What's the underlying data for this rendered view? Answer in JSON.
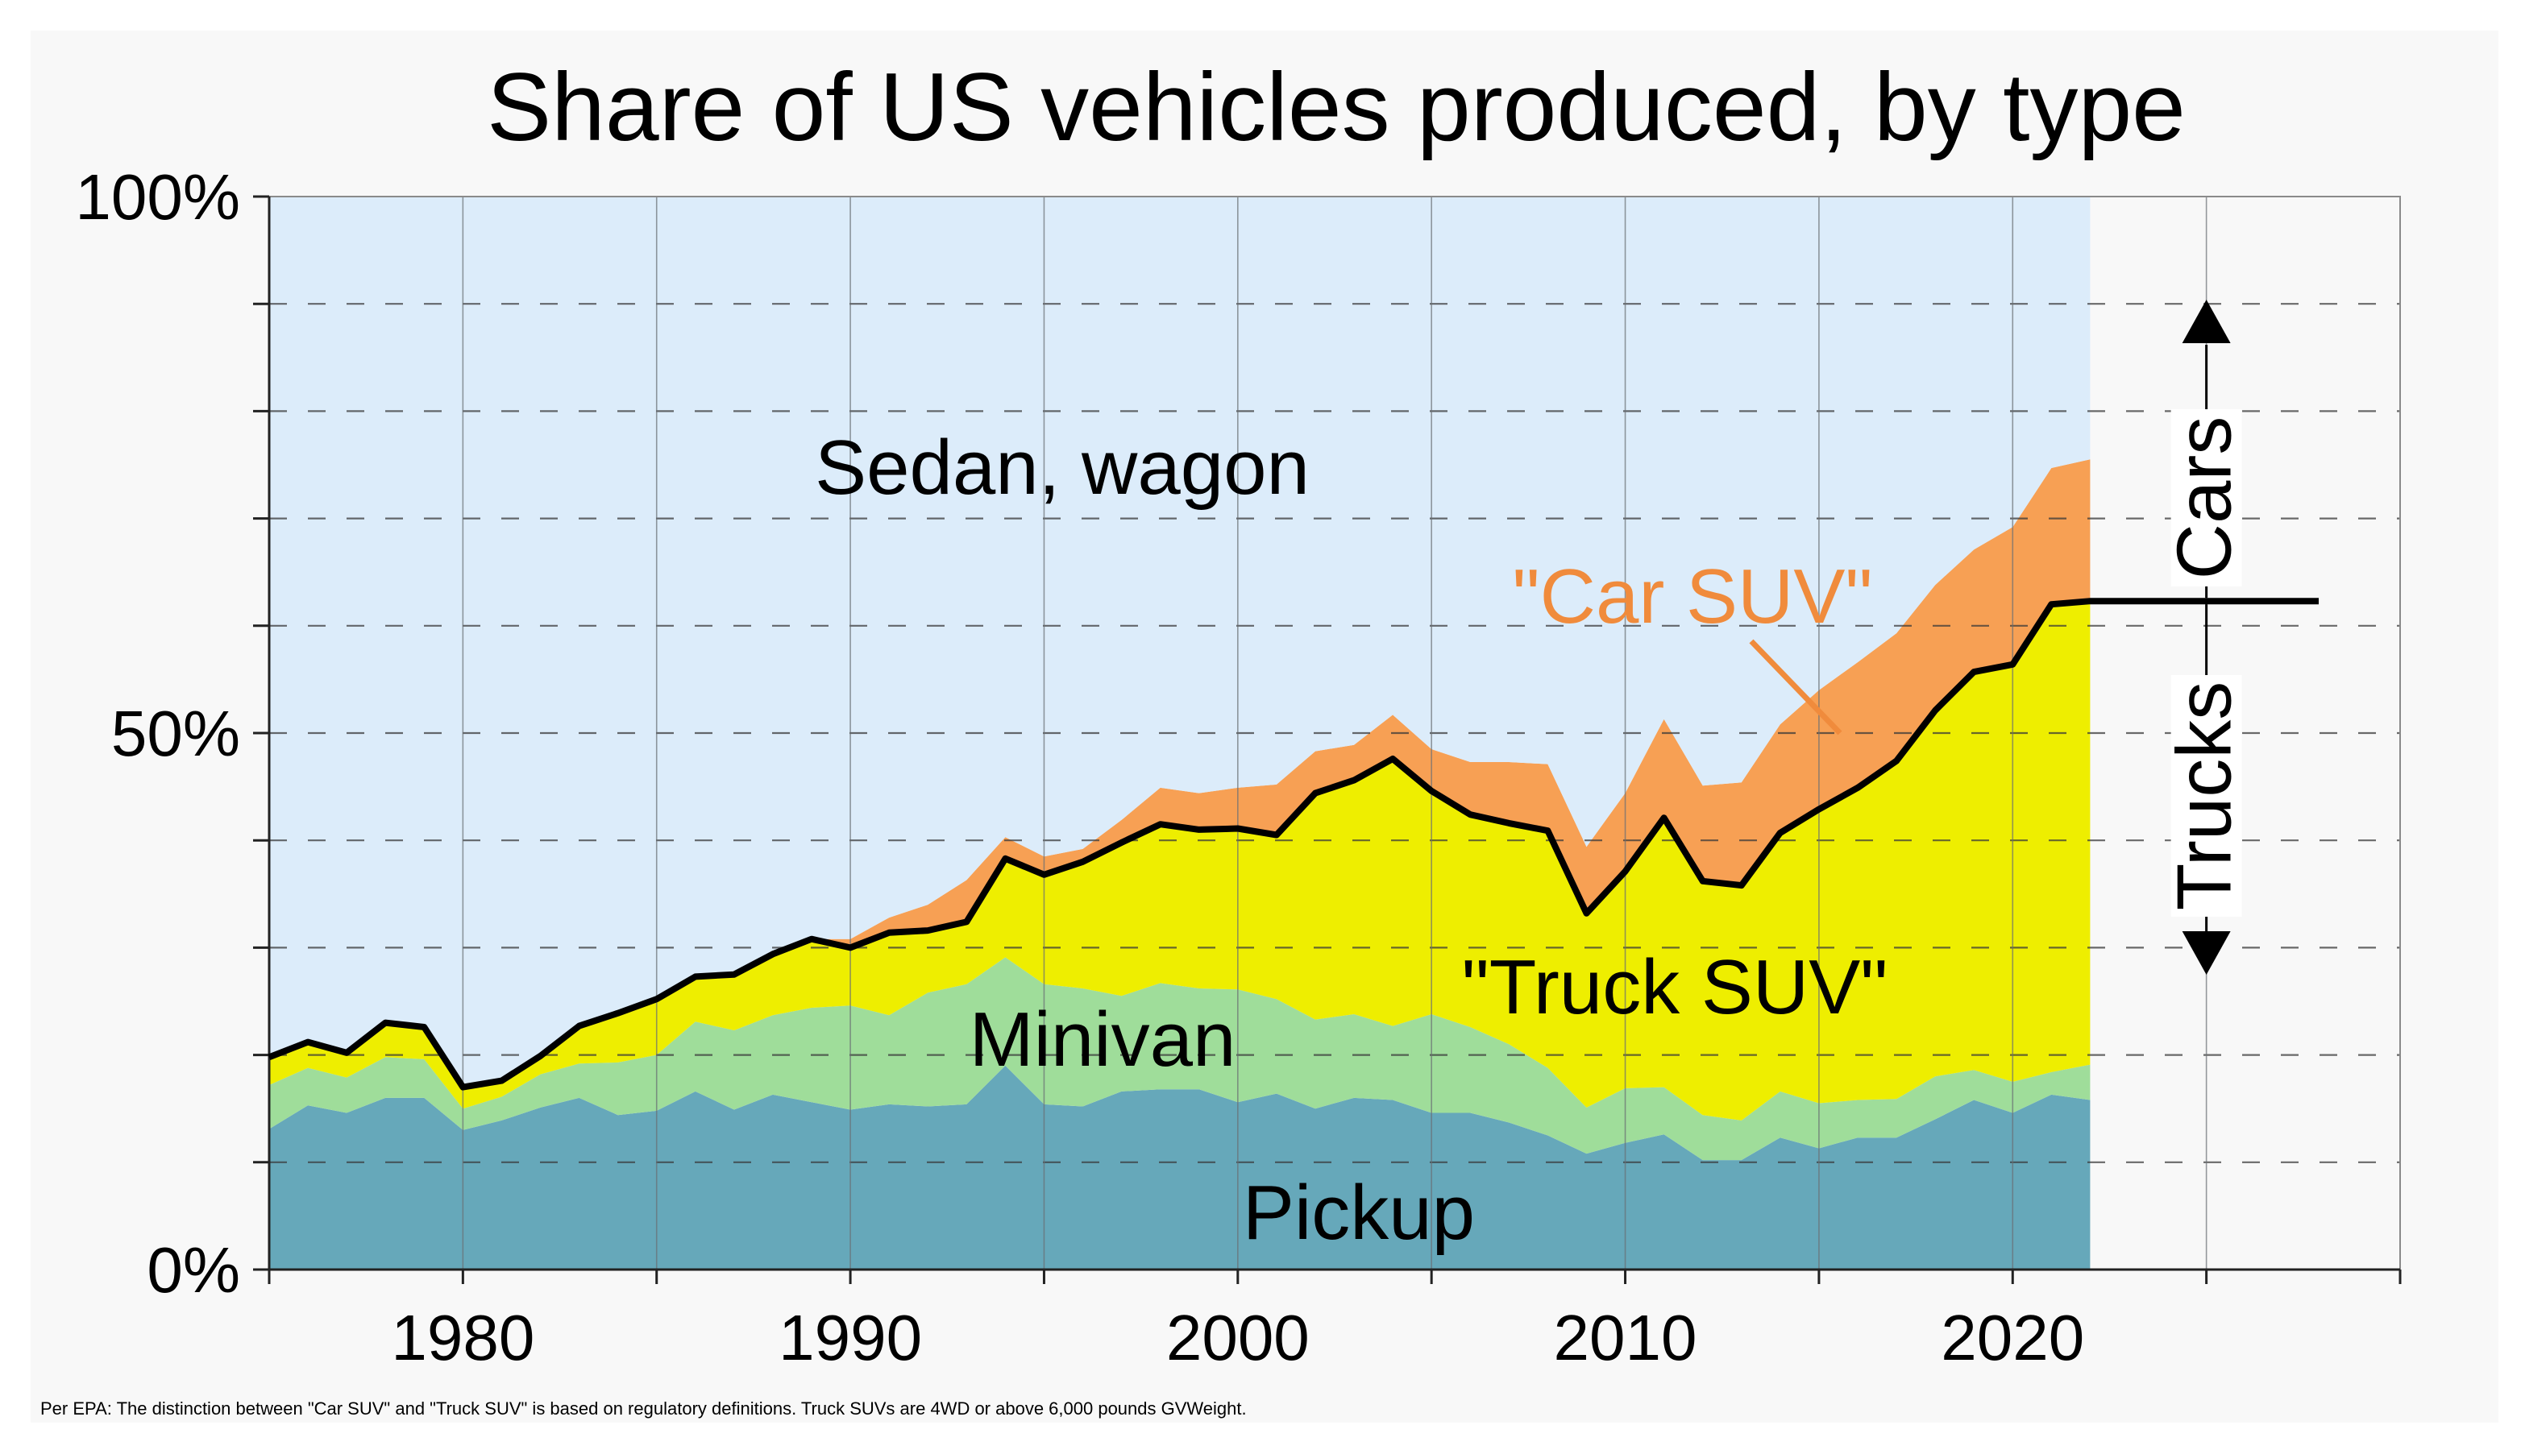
{
  "chart_data": {
    "type": "area",
    "title": "Share of US vehicles produced, by type",
    "xlabel": "",
    "ylabel": "",
    "xlim": [
      1975,
      2030
    ],
    "ylim": [
      0,
      100
    ],
    "x_ticks": [
      1980,
      1990,
      2000,
      2010,
      2020
    ],
    "y_tick_labels": [
      "0%",
      "50%",
      "100%"
    ],
    "stacking": "cumulative",
    "x": [
      1975,
      1976,
      1977,
      1978,
      1979,
      1980,
      1981,
      1982,
      1983,
      1984,
      1985,
      1986,
      1987,
      1988,
      1989,
      1990,
      1991,
      1992,
      1993,
      1994,
      1995,
      1996,
      1997,
      1998,
      1999,
      2000,
      2001,
      2002,
      2003,
      2004,
      2005,
      2006,
      2007,
      2008,
      2009,
      2010,
      2011,
      2012,
      2013,
      2014,
      2015,
      2016,
      2017,
      2018,
      2019,
      2020,
      2021,
      2022
    ],
    "series": [
      {
        "name": "Pickup",
        "color": "#66a8ba",
        "values": [
          13.1,
          15.3,
          14.6,
          16.0,
          16.0,
          13.0,
          13.9,
          15.1,
          16.0,
          14.4,
          14.8,
          16.6,
          14.9,
          16.3,
          15.6,
          14.9,
          15.4,
          15.2,
          15.4,
          19.0,
          15.4,
          15.2,
          16.6,
          16.8,
          16.8,
          15.6,
          16.4,
          15.0,
          16.0,
          15.8,
          14.6,
          14.6,
          13.7,
          12.5,
          10.8,
          11.8,
          12.6,
          10.2,
          10.2,
          12.3,
          11.3,
          12.3,
          12.3,
          14.0,
          15.8,
          14.6,
          16.3,
          15.8
        ]
      },
      {
        "name": "Minivan",
        "color": "#9fdd9a",
        "values": [
          4.1,
          3.5,
          3.3,
          3.8,
          3.6,
          2.0,
          2.2,
          3.1,
          3.2,
          4.9,
          5.2,
          6.5,
          7.4,
          7.4,
          8.8,
          9.7,
          8.3,
          10.6,
          11.2,
          10.1,
          11.2,
          11.0,
          8.9,
          9.9,
          9.4,
          10.5,
          8.8,
          8.3,
          7.8,
          6.9,
          9.2,
          8.0,
          7.3,
          6.3,
          4.3,
          5.1,
          4.4,
          4.2,
          3.7,
          4.3,
          4.2,
          3.5,
          3.6,
          4.0,
          2.8,
          2.9,
          2.1,
          3.3
        ]
      },
      {
        "name": "\"Truck SUV\"",
        "color": "#eeee00",
        "values": [
          2.6,
          2.4,
          2.3,
          3.2,
          3.0,
          2.0,
          1.5,
          1.7,
          3.5,
          4.6,
          5.2,
          4.2,
          5.2,
          5.7,
          6.4,
          5.4,
          7.7,
          5.8,
          5.8,
          9.2,
          10.2,
          11.8,
          14.3,
          14.8,
          14.8,
          15.0,
          15.3,
          21.1,
          21.8,
          24.9,
          20.8,
          19.8,
          20.6,
          22.1,
          18.1,
          20.2,
          25.1,
          21.8,
          21.9,
          24.1,
          27.4,
          29.1,
          31.5,
          34.1,
          37.1,
          38.9,
          43.6,
          43.2
        ]
      },
      {
        "name": "\"Car SUV\"",
        "color": "#f7a054",
        "values": [
          0,
          0,
          0,
          0,
          0,
          0,
          0,
          0,
          0,
          0,
          0,
          0,
          0,
          0,
          0,
          0.8,
          1.4,
          2.4,
          3.9,
          2.0,
          1.7,
          1.2,
          2.1,
          3.4,
          3.4,
          3.8,
          4.7,
          3.9,
          3.3,
          4.1,
          3.9,
          4.9,
          5.7,
          6.2,
          6.2,
          7.3,
          9.2,
          8.9,
          9.6,
          10.1,
          11.1,
          11.7,
          11.9,
          11.7,
          11.4,
          12.8,
          12.7,
          13.2
        ]
      },
      {
        "name": "Sedan, wagon",
        "color": "#dcecfa",
        "values": [
          80.2,
          78.8,
          79.8,
          77.0,
          77.4,
          83.0,
          82.4,
          80.1,
          77.3,
          76.1,
          74.8,
          72.7,
          72.5,
          70.6,
          69.2,
          69.2,
          67.2,
          66.0,
          63.7,
          59.7,
          61.5,
          60.8,
          58.1,
          55.1,
          55.6,
          55.1,
          54.8,
          51.7,
          51.1,
          48.3,
          51.5,
          52.7,
          52.7,
          52.9,
          60.6,
          55.6,
          48.7,
          54.9,
          54.6,
          49.2,
          46.0,
          43.4,
          40.7,
          36.2,
          32.9,
          30.8,
          25.3,
          24.5
        ]
      }
    ],
    "annotations": {
      "area_labels": [
        "Sedan, wagon",
        "\"Car SUV\"",
        "\"Truck SUV\"",
        "Minivan",
        "Pickup"
      ],
      "cars_label": "Cars",
      "trucks_label": "Trucks"
    },
    "footnote": "Per EPA: The distinction between \"Car SUV\" and \"Truck SUV\" is based on regulatory definitions. Truck SUVs are 4WD or above 6,000 pounds GVWeight.",
    "grid": {
      "horizontal": "dashed",
      "vertical": "solid"
    },
    "divider_color": "#000000"
  }
}
